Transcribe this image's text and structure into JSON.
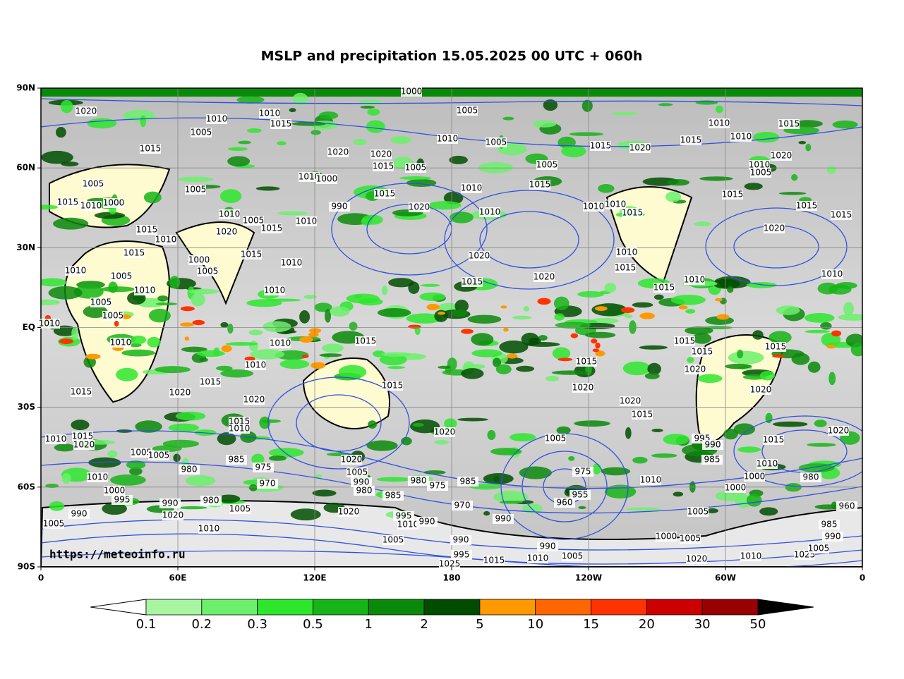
{
  "title": "MSLP and precipitation 15.05.2025 00 UTC + 060h",
  "lat_labels": [
    "90N",
    "60N",
    "30N",
    "EQ",
    "30S",
    "60S",
    "90S"
  ],
  "lon_labels": [
    "0",
    "60E",
    "120E",
    "180",
    "120W",
    "60W",
    "0"
  ],
  "watermark": "https://meteoinfo.ru",
  "isobar_labels": [
    "1000",
    "1005",
    "1020",
    "1010",
    "1010",
    "1015",
    "1005",
    "1015",
    "1020",
    "1020",
    "1005",
    "1010",
    "1015",
    "1020",
    "1015",
    "1010",
    "1010",
    "1015",
    "1020",
    "1010",
    "1005",
    "1015",
    "1005",
    "1005",
    "1015",
    "1010",
    "1005",
    "1005",
    "1010",
    "1000",
    "1015",
    "1020",
    "990",
    "1010",
    "1010",
    "1010",
    "1015",
    "1015",
    "1015",
    "1015",
    "1020",
    "1015",
    "1010",
    "1000",
    "1010",
    "1005",
    "1015",
    "1010",
    "1020",
    "1015",
    "1010",
    "1015",
    "1015",
    "1010",
    "1000",
    "1005",
    "1020",
    "1010",
    "1015",
    "1020",
    "1015",
    "1010",
    "1015",
    "1010",
    "1010",
    "1005",
    "1010",
    "1010",
    "1005",
    "1005",
    "1010",
    "1010",
    "1010",
    "1015",
    "1015",
    "1015",
    "1015",
    "1010",
    "1015",
    "1020",
    "1015",
    "1015",
    "1020",
    "1020",
    "1020",
    "1020",
    "1015",
    "1020",
    "1015",
    "1015",
    "1010",
    "1010",
    "1015",
    "1020",
    "1020",
    "1015",
    "1020",
    "1005",
    "995",
    "990",
    "985",
    "1005",
    "1005",
    "980",
    "985",
    "975",
    "970",
    "1020",
    "1005",
    "990",
    "980",
    "980",
    "975",
    "985",
    "975",
    "955",
    "960",
    "970",
    "1010",
    "1000",
    "1010",
    "1000",
    "980",
    "960",
    "1010",
    "1000",
    "995",
    "990",
    "980",
    "1005",
    "990",
    "1020",
    "1010",
    "1005",
    "1020",
    "985",
    "995",
    "1010",
    "990",
    "990",
    "1005",
    "990",
    "995",
    "1005",
    "990",
    "1005",
    "1010",
    "1015",
    "1025",
    "1000",
    "1005",
    "1020",
    "1010",
    "1025",
    "1005",
    "985",
    "990"
  ],
  "colorbar": {
    "levels": [
      0.1,
      0.2,
      0.3,
      0.5,
      1,
      2,
      5,
      10,
      15,
      20,
      30,
      50
    ],
    "colors": [
      "#a8f5a0",
      "#6cf06c",
      "#2ee62e",
      "#16b416",
      "#0a8a0a",
      "#004d00",
      "#ff9900",
      "#ff6600",
      "#ff3300",
      "#cc0000",
      "#990000"
    ]
  }
}
